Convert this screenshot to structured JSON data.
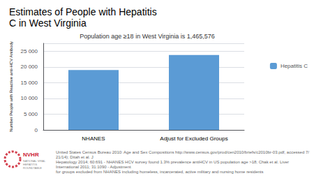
{
  "chart_data": {
    "type": "bar",
    "title": "Estimates of People with Hepatitis\nC in West Virginia",
    "subtitle": "Population age ≥18 in West Virginia is 1,465,576",
    "categories": [
      "NHANES",
      "Adjust for Excluded Groups"
    ],
    "values": [
      19000,
      23800
    ],
    "color": "#5B9BD5",
    "ylabel": "Number People with Reactive anti-HCV Antibody",
    "ylim": [
      0,
      27500
    ],
    "yticks": [
      0,
      {
        "value": 5000,
        "label": "5 000"
      },
      {
        "value": 10000,
        "label": "10 000"
      },
      {
        "value": 15000,
        "label": "15 000"
      },
      {
        "value": 20000,
        "label": "20 000"
      },
      {
        "value": 25000,
        "label": "25 000"
      }
    ],
    "grid": true,
    "legend": "right",
    "series_name": "Hepatitis C",
    "footer": [
      "United States Census Bureau 2010: Age and Sex Compositions http://www.census.gov/prod/cen2010/briefs/c2010br-03.pdf, accessed 7/21/14); Ditah et al. J",
      "Hepatology 2014; 60:691 - NHANES HCV survey found 1.3% prevalence antiHCV in US population age >18; Chak et al. Liver International 2011; 31:1090 - Adjustment",
      "for groups excluded from NHANES including homeless, incarcerated, active military and nursing home residents"
    ],
    "annotations": [
      "NVHR",
      "NATIONAL VIRAL\nHEPATITIS\nROUNDTABLE"
    ]
  }
}
